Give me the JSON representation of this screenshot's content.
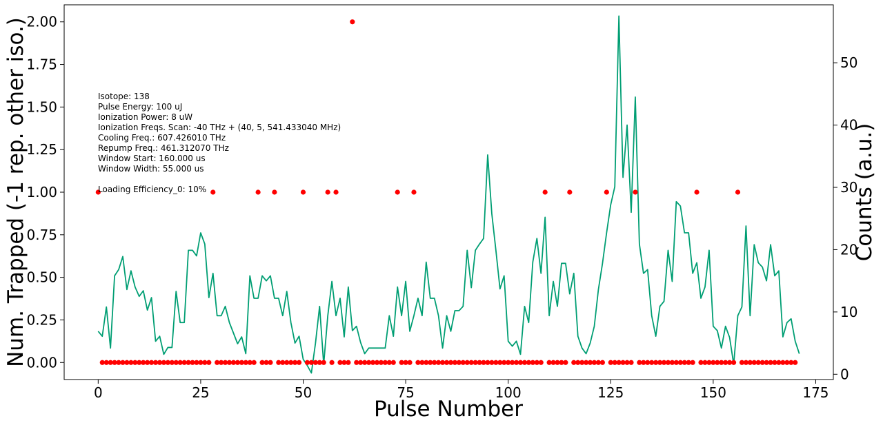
{
  "chart_data": {
    "type": "scatter+line",
    "xlabel": "Pulse Number",
    "ylabel_left": "Num. Trapped (-1 rep. other iso.)",
    "ylabel_right": "Counts (a.u.)",
    "xlim": [
      -8.3,
      179.3
    ],
    "xticks": [
      0,
      25,
      50,
      75,
      100,
      125,
      150,
      175
    ],
    "ylim_left": [
      -0.1,
      2.1
    ],
    "yticks_left": [
      "0.00",
      "0.25",
      "0.50",
      "0.75",
      "1.00",
      "1.25",
      "1.50",
      "1.75",
      "2.00"
    ],
    "ylim_right": [
      -0.85,
      59.3
    ],
    "yticks_right": [
      0,
      10,
      20,
      30,
      40,
      50
    ],
    "grid": false,
    "annotations": [
      "Isotope: 138",
      "Pulse Energy: 100 uJ",
      "Ionization Power: 8 uW",
      "Ionization Freqs. Scan: -40 THz + (40, 5, 541.433040 MHz)",
      "Cooling Freq.: 607.426010 THz",
      "Repump Freq.: 461.312070 THz",
      "Window Start: 160.000 us",
      "Window Width: 55.000 us",
      "",
      "Loading Efficiency_0: 10%"
    ],
    "series": [
      {
        "kind": "scatter",
        "axis": "left",
        "color": "#ff0000",
        "x_range": [
          0,
          170
        ],
        "default_y": 0,
        "y_overrides": {
          "0": 1,
          "28": 1,
          "39": 1,
          "43": 1,
          "50": 1,
          "56": 1,
          "58": 1,
          "62": 2,
          "73": 1,
          "77": 1,
          "109": 1,
          "115": 1,
          "124": 1,
          "131": 1,
          "146": 1,
          "156": 1
        }
      },
      {
        "kind": "line",
        "axis": "right",
        "color": "#009e73",
        "x_start": 0,
        "values": [
          6.9,
          6.1,
          10.8,
          4.2,
          15.8,
          16.8,
          18.9,
          13.6,
          16.6,
          14.0,
          12.5,
          13.4,
          10.3,
          12.3,
          5.3,
          6.1,
          3.2,
          4.3,
          4.3,
          13.3,
          8.3,
          8.3,
          19.9,
          19.9,
          19.0,
          22.7,
          20.9,
          12.3,
          16.2,
          9.4,
          9.4,
          10.9,
          8.3,
          6.6,
          4.9,
          6.0,
          3.3,
          15.8,
          12.2,
          12.2,
          15.8,
          15.0,
          15.8,
          12.2,
          12.2,
          9.4,
          13.3,
          8.3,
          5.0,
          6.1,
          2.4,
          1.4,
          0.2,
          5.0,
          10.9,
          1.6,
          9.4,
          14.9,
          9.4,
          12.2,
          6.0,
          14.0,
          7.0,
          7.7,
          5.1,
          3.3,
          4.2,
          4.2,
          4.2,
          4.2,
          4.2,
          9.4,
          6.1,
          14.0,
          9.4,
          14.9,
          6.9,
          9.4,
          12.2,
          9.4,
          18.0,
          12.2,
          12.2,
          9.4,
          4.2,
          9.4,
          6.9,
          10.2,
          10.2,
          10.9,
          19.9,
          13.9,
          19.9,
          20.9,
          21.8,
          35.2,
          25.8,
          19.9,
          13.7,
          15.8,
          5.3,
          4.5,
          5.3,
          3.2,
          10.9,
          8.3,
          18.0,
          21.8,
          16.2,
          25.2,
          9.4,
          14.9,
          10.9,
          17.8,
          17.8,
          12.9,
          16.2,
          6.1,
          4.2,
          3.3,
          5.0,
          7.7,
          13.6,
          17.8,
          22.7,
          27.2,
          30.1,
          57.5,
          31.6,
          40.0,
          26.0,
          44.5,
          20.9,
          16.2,
          16.8,
          9.4,
          6.1,
          10.9,
          11.7,
          19.9,
          14.9,
          27.7,
          27.0,
          22.7,
          22.7,
          16.2,
          17.9,
          12.2,
          14.0,
          19.9,
          7.7,
          7.0,
          4.2,
          7.7,
          5.9,
          1.6,
          9.4,
          10.8,
          23.8,
          9.4,
          20.8,
          17.9,
          17.2,
          15.0,
          20.8,
          15.8,
          16.6,
          6.0,
          8.3,
          8.9,
          5.3,
          3.3
        ]
      }
    ]
  }
}
